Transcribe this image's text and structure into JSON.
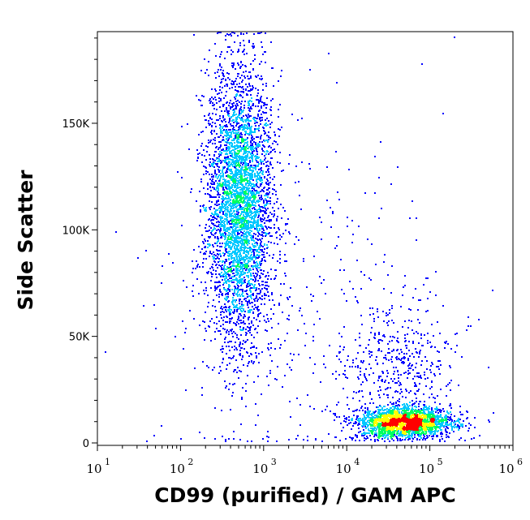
{
  "chart_data": {
    "type": "scatter",
    "style": "density-colored flow cytometry dot plot",
    "xlabel": "CD99 (purified) / GAM APC",
    "ylabel": "Side Scatter",
    "x_scale": "log",
    "xlim": [
      10,
      1000000
    ],
    "ylim": [
      0,
      193000
    ],
    "x_ticks": [
      {
        "base": "10",
        "exp": "1"
      },
      {
        "base": "10",
        "exp": "2"
      },
      {
        "base": "10",
        "exp": "3"
      },
      {
        "base": "10",
        "exp": "4"
      },
      {
        "base": "10",
        "exp": "5"
      },
      {
        "base": "10",
        "exp": "6"
      }
    ],
    "y_ticks": [
      {
        "value": 0,
        "label": "0"
      },
      {
        "value": 50000,
        "label": "50K"
      },
      {
        "value": 100000,
        "label": "100K"
      },
      {
        "value": 150000,
        "label": "150K"
      }
    ],
    "grid": false,
    "density_colors": [
      "#0000ff",
      "#00c8ff",
      "#00ff60",
      "#ffff00",
      "#ff0000"
    ],
    "populations": [
      {
        "x_center": 500,
        "x_log_sd": 0.2,
        "y_center": 112000,
        "y_sd": 32000,
        "events": 4200
      },
      {
        "x_center": 50000,
        "x_log_sd": 0.28,
        "y_center": 10000,
        "y_sd": 3500,
        "events": 2400
      },
      {
        "x_center": 40000,
        "x_log_sd": 0.35,
        "y_center": 35000,
        "y_sd": 15000,
        "events": 450
      },
      {
        "x_center": 3000,
        "x_log_sd": 0.9,
        "y_center": 60000,
        "y_sd": 45000,
        "events": 350
      }
    ]
  }
}
